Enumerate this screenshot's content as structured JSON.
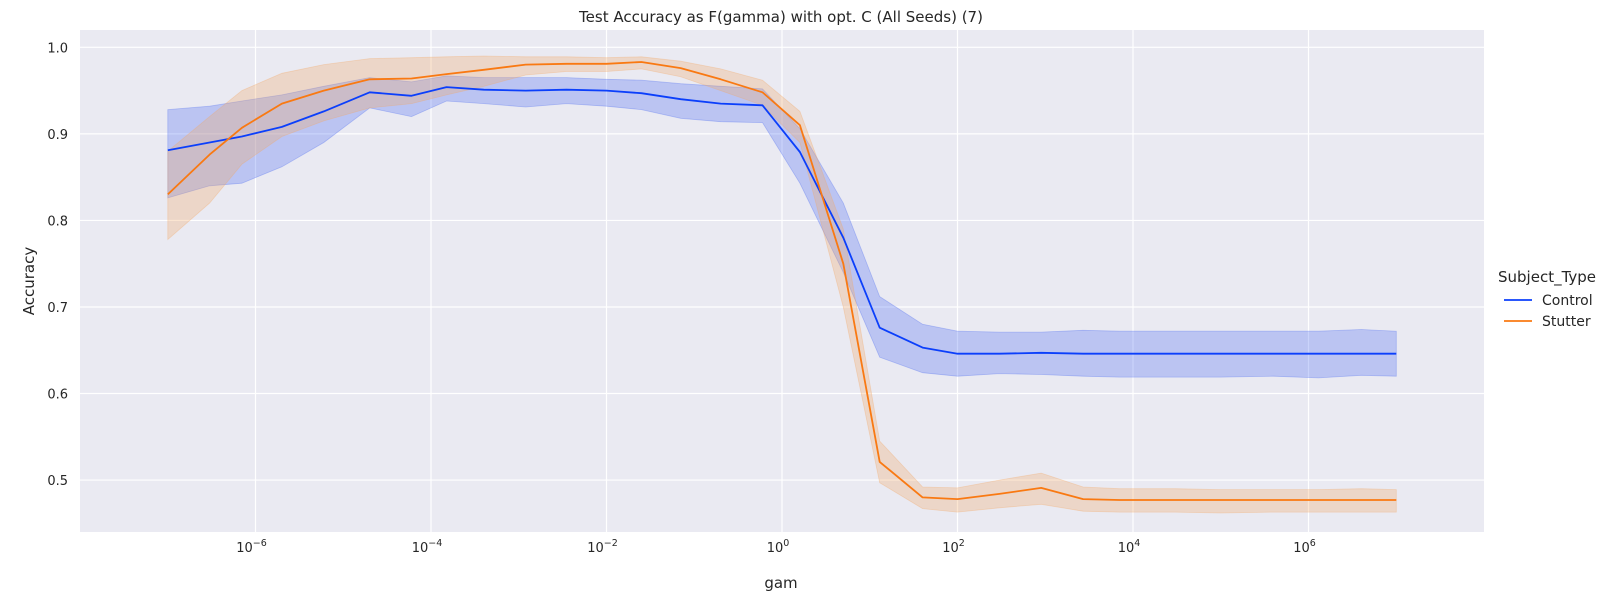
{
  "chart_data": {
    "type": "line",
    "title": "Test Accuracy as F(gamma) with opt. C (All Seeds) (7)",
    "xlabel": "gam",
    "ylabel": "Accuracy",
    "xscale": "log",
    "xlim": [
      1e-08,
      100000000.0
    ],
    "ylim": [
      0.44,
      1.02
    ],
    "grid": true,
    "x_ticks": [
      {
        "value": 1e-06,
        "base": "10",
        "exp": "−6"
      },
      {
        "value": 0.0001,
        "base": "10",
        "exp": "−4"
      },
      {
        "value": 0.01,
        "base": "10",
        "exp": "−2"
      },
      {
        "value": 1,
        "base": "10",
        "exp": "0"
      },
      {
        "value": 100,
        "base": "10",
        "exp": "2"
      },
      {
        "value": 10000,
        "base": "10",
        "exp": "4"
      },
      {
        "value": 1000000,
        "base": "10",
        "exp": "6"
      }
    ],
    "y_ticks": [
      "0.5",
      "0.6",
      "0.7",
      "0.8",
      "0.9",
      "1.0"
    ],
    "legend": {
      "title": "Subject_Type",
      "placement": "right"
    },
    "x": [
      1e-07,
      3e-07,
      7e-07,
      2e-06,
      6e-06,
      2e-05,
      6e-05,
      0.00015,
      0.0004,
      0.0012,
      0.0035,
      0.01,
      0.025,
      0.07,
      0.2,
      0.6,
      1.6,
      5,
      13,
      40,
      100,
      300,
      900,
      2700,
      7000,
      30000,
      100000,
      400000,
      1300000,
      4000000,
      10000000
    ],
    "series": [
      {
        "name": "Control",
        "color": "#0b3ffb",
        "band_color": "#4e6ef2",
        "values": [
          0.881,
          0.89,
          0.897,
          0.908,
          0.926,
          0.948,
          0.944,
          0.954,
          0.951,
          0.95,
          0.951,
          0.95,
          0.947,
          0.94,
          0.935,
          0.933,
          0.879,
          0.78,
          0.676,
          0.653,
          0.646,
          0.646,
          0.647,
          0.646,
          0.646,
          0.646,
          0.646,
          0.646,
          0.646,
          0.646,
          0.646
        ],
        "lower": [
          0.826,
          0.84,
          0.843,
          0.862,
          0.89,
          0.93,
          0.92,
          0.938,
          0.935,
          0.931,
          0.935,
          0.932,
          0.928,
          0.918,
          0.914,
          0.913,
          0.843,
          0.74,
          0.642,
          0.624,
          0.62,
          0.623,
          0.622,
          0.62,
          0.619,
          0.619,
          0.619,
          0.62,
          0.618,
          0.621,
          0.62
        ],
        "upper": [
          0.928,
          0.932,
          0.938,
          0.945,
          0.955,
          0.965,
          0.96,
          0.967,
          0.965,
          0.965,
          0.965,
          0.963,
          0.962,
          0.958,
          0.955,
          0.952,
          0.906,
          0.82,
          0.712,
          0.68,
          0.672,
          0.671,
          0.671,
          0.673,
          0.672,
          0.672,
          0.672,
          0.672,
          0.672,
          0.674,
          0.672
        ]
      },
      {
        "name": "Stutter",
        "color": "#f97912",
        "band_color": "#f3a866",
        "values": [
          0.83,
          0.876,
          0.907,
          0.935,
          0.95,
          0.963,
          0.964,
          0.969,
          0.974,
          0.98,
          0.981,
          0.981,
          0.983,
          0.976,
          0.963,
          0.948,
          0.91,
          0.75,
          0.521,
          0.48,
          0.478,
          0.484,
          0.491,
          0.478,
          0.477,
          0.477,
          0.477,
          0.477,
          0.477,
          0.477,
          0.477
        ],
        "lower": [
          0.778,
          0.82,
          0.865,
          0.897,
          0.915,
          0.93,
          0.935,
          0.945,
          0.955,
          0.968,
          0.972,
          0.972,
          0.975,
          0.966,
          0.95,
          0.933,
          0.89,
          0.7,
          0.497,
          0.467,
          0.463,
          0.468,
          0.472,
          0.464,
          0.463,
          0.463,
          0.462,
          0.463,
          0.463,
          0.463,
          0.463
        ],
        "upper": [
          0.88,
          0.92,
          0.95,
          0.97,
          0.98,
          0.987,
          0.988,
          0.989,
          0.99,
          0.989,
          0.989,
          0.988,
          0.989,
          0.984,
          0.975,
          0.962,
          0.926,
          0.79,
          0.545,
          0.492,
          0.491,
          0.5,
          0.508,
          0.492,
          0.49,
          0.49,
          0.489,
          0.489,
          0.489,
          0.49,
          0.489
        ]
      }
    ]
  }
}
